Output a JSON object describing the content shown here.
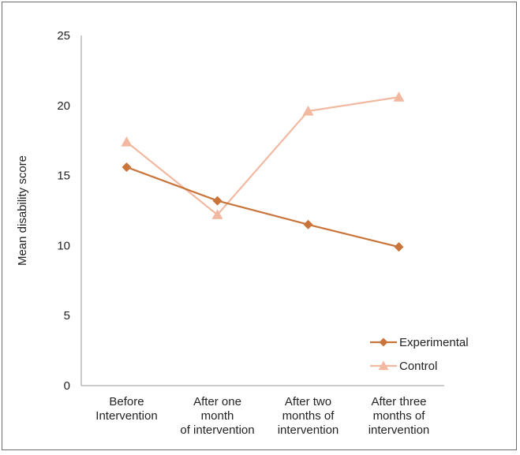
{
  "chart_data": {
    "type": "line",
    "title": "",
    "ylabel": "Mean disability score",
    "xlabel": "",
    "ylim": [
      0,
      25
    ],
    "yticks": [
      0,
      5,
      10,
      15,
      20,
      25
    ],
    "categories": [
      [
        "Before",
        "Intervention"
      ],
      [
        "After one",
        "month",
        "of intervention"
      ],
      [
        "After two",
        "months of",
        "intervention"
      ],
      [
        "After three",
        "months of",
        "intervention"
      ]
    ],
    "series": [
      {
        "name": "Experimental",
        "values": [
          15.6,
          13.2,
          11.5,
          9.9
        ],
        "color": "#c8743a",
        "marker": "diamond"
      },
      {
        "name": "Control",
        "values": [
          17.4,
          12.2,
          19.6,
          20.6
        ],
        "color": "#f2b8a0",
        "marker": "triangle"
      }
    ],
    "legend_position": "bottom-right",
    "grid": false
  }
}
